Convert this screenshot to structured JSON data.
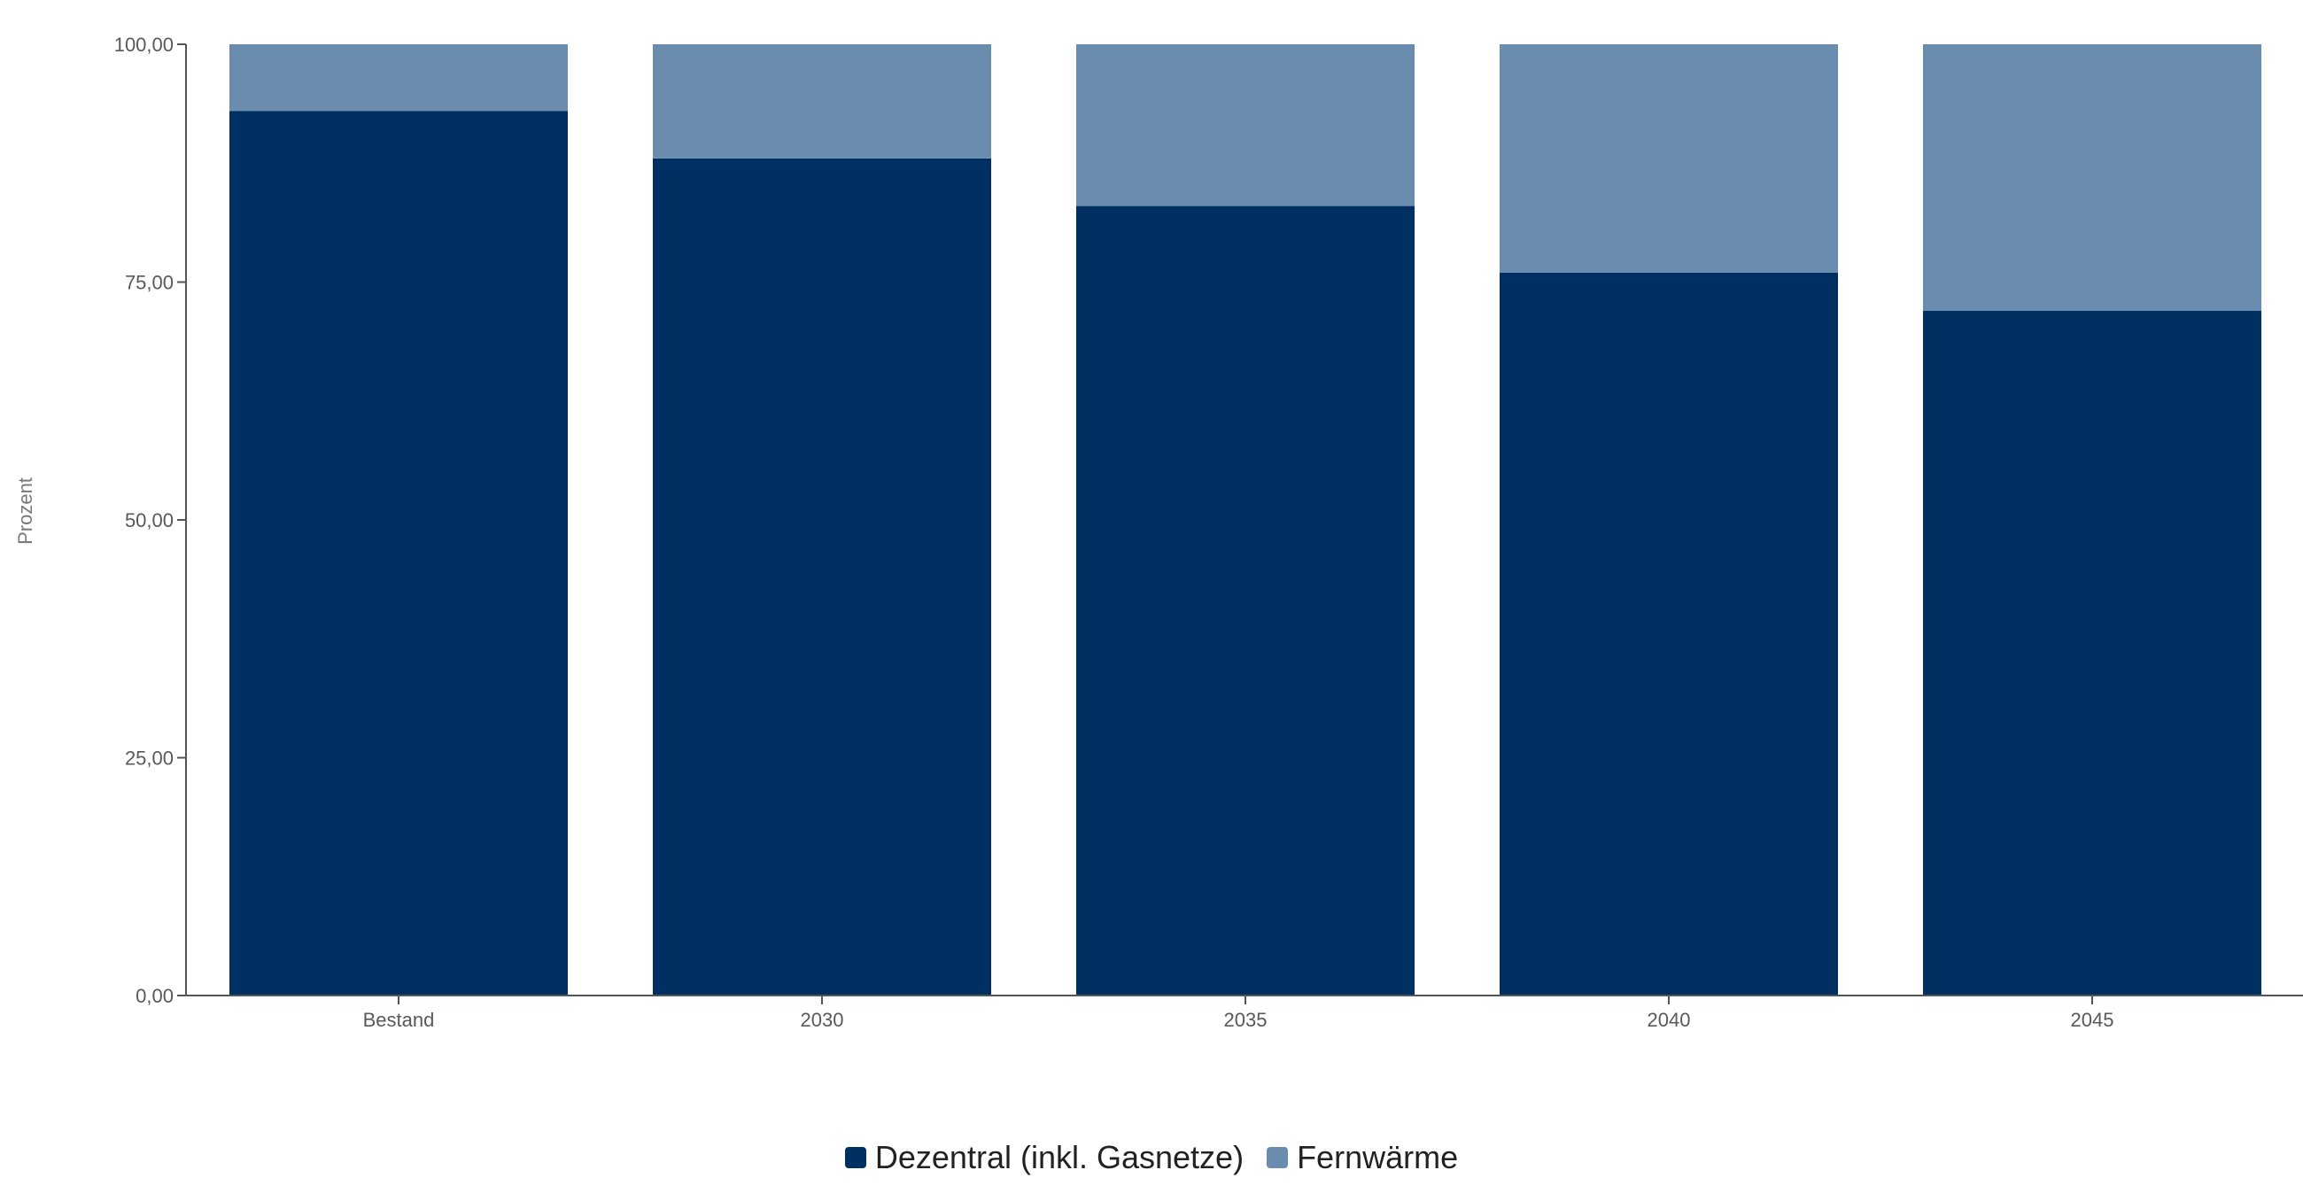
{
  "chart_data": {
    "type": "bar",
    "stacked": true,
    "categories": [
      "Bestand",
      "2030",
      "2035",
      "2040",
      "2045"
    ],
    "series": [
      {
        "name": "Dezentral (inkl. Gasnetze)",
        "color": "#002f62",
        "values": [
          93,
          88,
          83,
          76,
          72
        ]
      },
      {
        "name": "Fernwärme",
        "color": "#6a8caf",
        "values": [
          7,
          12,
          17,
          24,
          28
        ]
      }
    ],
    "ylabel": "Prozent",
    "xlabel": "",
    "ylim": [
      0,
      100
    ],
    "yticks": [
      "0,00",
      "25,00",
      "50,00",
      "75,00",
      "100,00"
    ],
    "grid": false,
    "legend_position": "bottom-center"
  }
}
